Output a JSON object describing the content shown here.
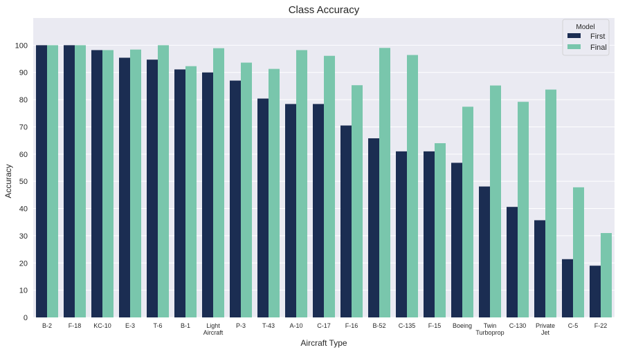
{
  "chart_data": {
    "type": "bar",
    "title": "Class Accuracy",
    "xlabel": "Aircraft Type",
    "ylabel": "Accuracy",
    "ylim": [
      0,
      110
    ],
    "yticks": [
      0,
      10,
      20,
      30,
      40,
      50,
      60,
      70,
      80,
      90,
      100
    ],
    "grid": true,
    "legend": {
      "title": "Model",
      "placement": "top-right"
    },
    "categories": [
      [
        "B-2"
      ],
      [
        "F-18"
      ],
      [
        "KC-10"
      ],
      [
        "E-3"
      ],
      [
        "T-6"
      ],
      [
        "B-1"
      ],
      [
        "Light",
        "Aircraft"
      ],
      [
        "P-3"
      ],
      [
        "T-43"
      ],
      [
        "A-10"
      ],
      [
        "C-17"
      ],
      [
        "F-16"
      ],
      [
        "B-52"
      ],
      [
        "C-135"
      ],
      [
        "F-15"
      ],
      [
        "Boeing"
      ],
      [
        "Twin",
        "Turboprop"
      ],
      [
        "C-130"
      ],
      [
        "Private",
        "Jet"
      ],
      [
        "C-5"
      ],
      [
        "F-22"
      ]
    ],
    "series": [
      {
        "name": "First",
        "color": "#1b2d52",
        "values": [
          100,
          100,
          98.2,
          95.4,
          94.7,
          91.1,
          90.0,
          87.0,
          80.4,
          78.4,
          78.4,
          70.5,
          65.8,
          61.0,
          61.0,
          56.8,
          48.1,
          40.6,
          35.7,
          21.4,
          19.0
        ]
      },
      {
        "name": "Final",
        "color": "#79c6ac",
        "values": [
          100,
          100,
          98.2,
          98.4,
          100,
          92.3,
          98.9,
          93.6,
          91.3,
          98.2,
          96.1,
          85.3,
          99.0,
          96.4,
          64.0,
          77.4,
          85.2,
          79.2,
          83.7,
          47.8,
          31.0
        ]
      }
    ]
  }
}
